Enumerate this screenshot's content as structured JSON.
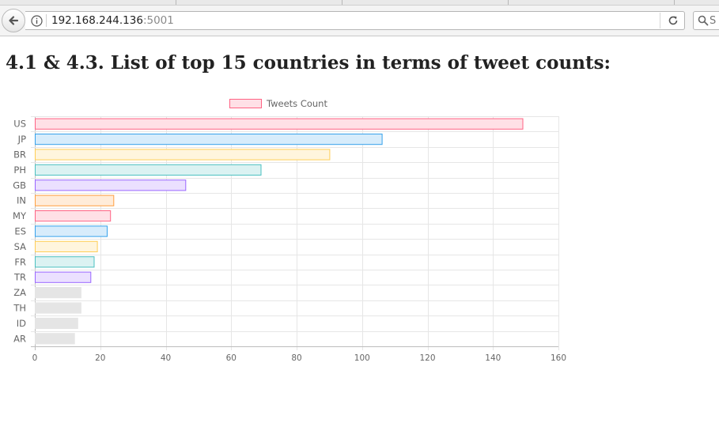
{
  "browser": {
    "url_host": "192.168.244.136",
    "url_port": ":5001",
    "search_placeholder": "S"
  },
  "page": {
    "title": "4.1 & 4.3. List of top 15 countries in terms of tweet counts:"
  },
  "chart_data": {
    "type": "bar",
    "orientation": "horizontal",
    "categories": [
      "US",
      "JP",
      "BR",
      "PH",
      "GB",
      "IN",
      "MY",
      "ES",
      "SA",
      "FR",
      "TR",
      "ZA",
      "TH",
      "ID",
      "AR"
    ],
    "series": [
      {
        "name": "Tweets Count",
        "values": [
          149,
          106,
          90,
          69,
          46,
          24,
          23,
          22,
          19,
          18,
          17,
          14,
          14,
          13,
          12
        ]
      }
    ],
    "xlim": [
      0,
      160
    ],
    "xticks": [
      0,
      20,
      40,
      60,
      80,
      100,
      120,
      140,
      160
    ],
    "grid": true,
    "legend": "top-center",
    "colors": [
      {
        "fill": "#ffe0e6",
        "stroke": "#ff6384"
      },
      {
        "fill": "#d7ecfb",
        "stroke": "#36a2eb"
      },
      {
        "fill": "#fff5dd",
        "stroke": "#ffce56"
      },
      {
        "fill": "#dbf2f2",
        "stroke": "#4bc0c0"
      },
      {
        "fill": "#ebe0ff",
        "stroke": "#9966ff"
      },
      {
        "fill": "#ffecd9",
        "stroke": "#ff9f40"
      },
      {
        "fill": "#ffe0e6",
        "stroke": "#ff6384"
      },
      {
        "fill": "#d7ecfb",
        "stroke": "#36a2eb"
      },
      {
        "fill": "#fff5dd",
        "stroke": "#ffce56"
      },
      {
        "fill": "#dbf2f2",
        "stroke": "#4bc0c0"
      },
      {
        "fill": "#ebe0ff",
        "stroke": "#9966ff"
      },
      {
        "fill": "#e5e5e5",
        "stroke": "#e5e5e5"
      },
      {
        "fill": "#e5e5e5",
        "stroke": "#e5e5e5"
      },
      {
        "fill": "#e5e5e5",
        "stroke": "#e5e5e5"
      },
      {
        "fill": "#e5e5e5",
        "stroke": "#e5e5e5"
      }
    ],
    "legend_color": {
      "fill": "#ffe0e6",
      "stroke": "#ff6384"
    }
  }
}
